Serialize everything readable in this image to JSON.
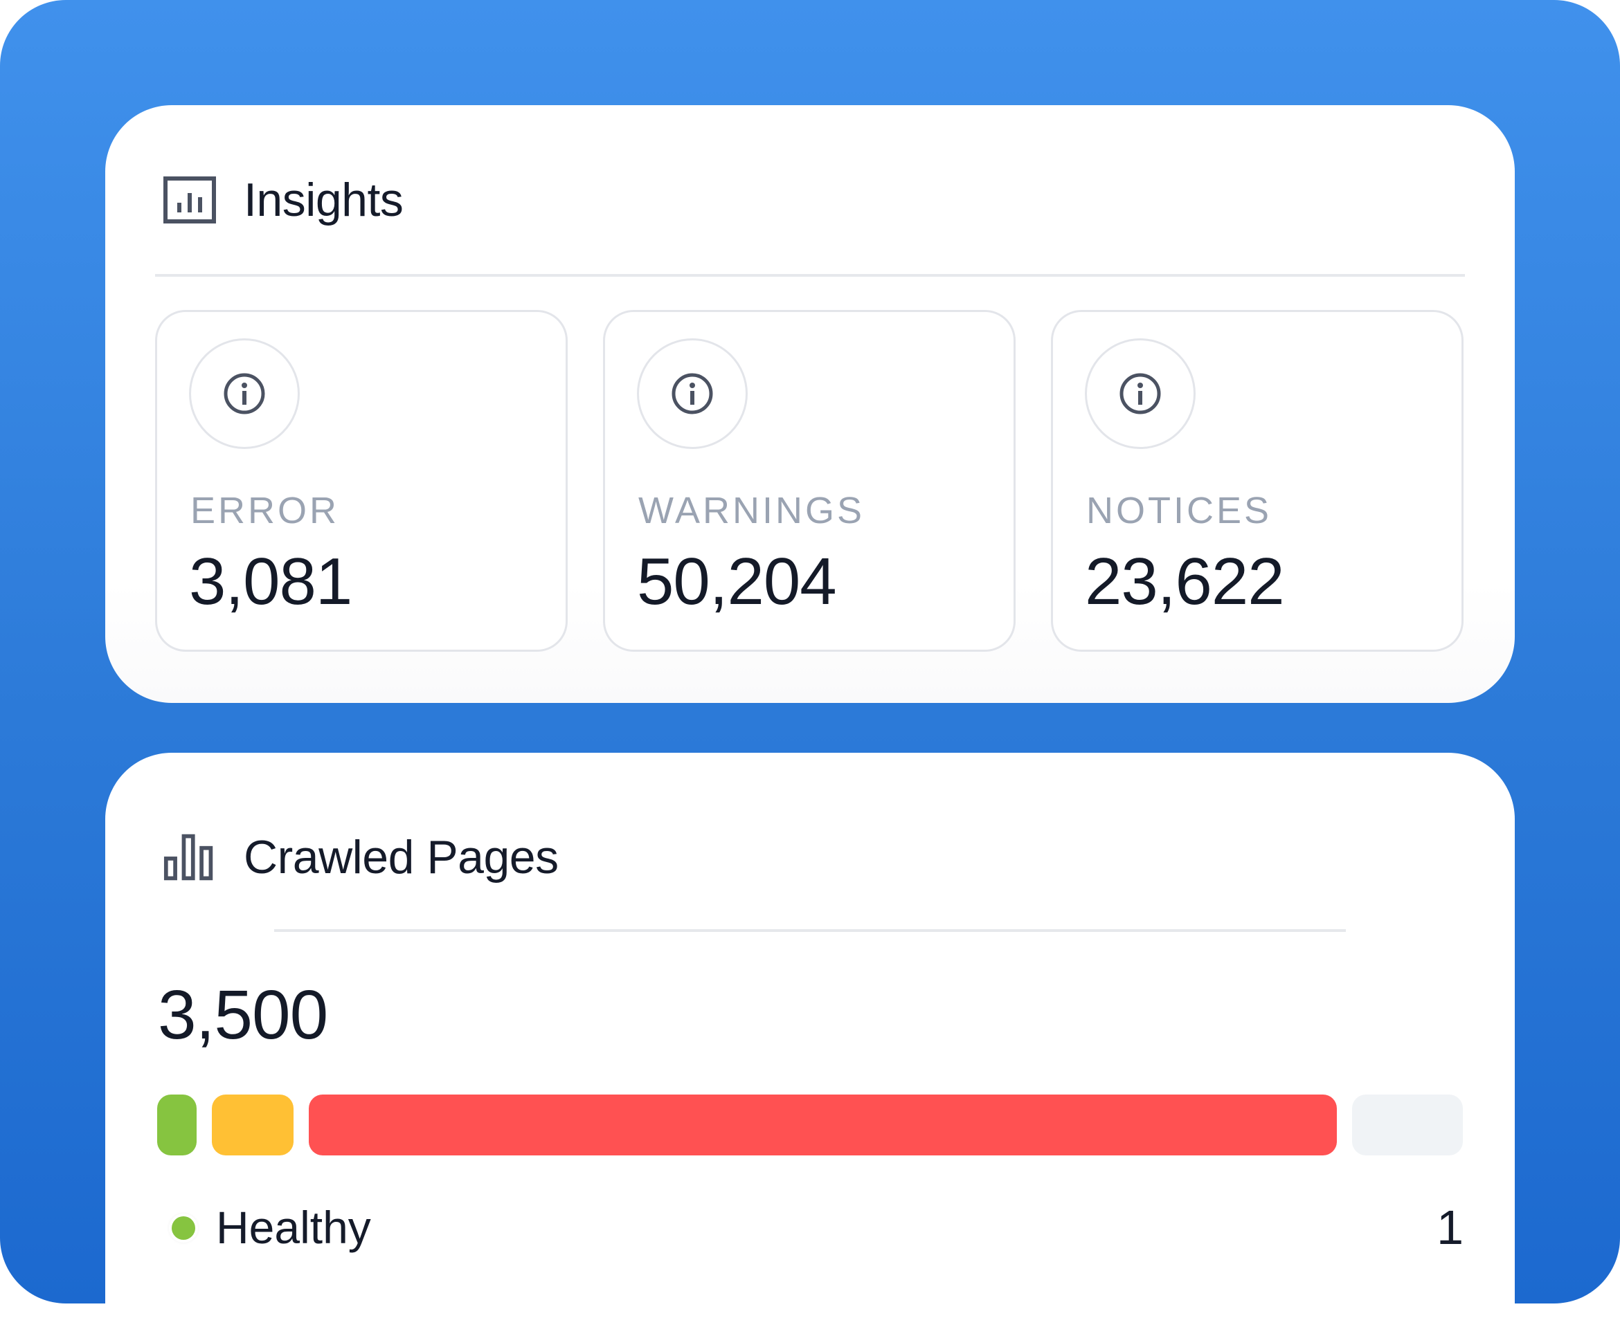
{
  "colors": {
    "background_gradient_top": "#4091ec",
    "background_gradient_bottom": "#1c69cf",
    "healthy": "#86c440",
    "warning": "#ffc034",
    "broken": "#ff5152",
    "empty": "#f0f3f6",
    "label_gray": "#9aa3b2",
    "text_dark": "#151b2a"
  },
  "insights": {
    "icon": "report-chart-icon",
    "title": "Insights",
    "stats": [
      {
        "label": "ERROR",
        "value": "3,081",
        "icon": "info-icon"
      },
      {
        "label": "WARNINGS",
        "value": "50,204",
        "icon": "info-icon"
      },
      {
        "label": "NOTICES",
        "value": "23,622",
        "icon": "info-icon"
      }
    ]
  },
  "crawled_pages": {
    "icon": "bar-chart-icon",
    "title": "Crawled Pages",
    "total": "3,500",
    "bar_segments": [
      {
        "status": "healthy",
        "color": "#86c440"
      },
      {
        "status": "warning",
        "color": "#ffc034"
      },
      {
        "status": "broken",
        "color": "#ff5152"
      },
      {
        "status": "empty",
        "color": "#f0f3f6"
      }
    ],
    "legend": [
      {
        "label": "Healthy",
        "count": "1",
        "color": "#86c440"
      }
    ]
  }
}
